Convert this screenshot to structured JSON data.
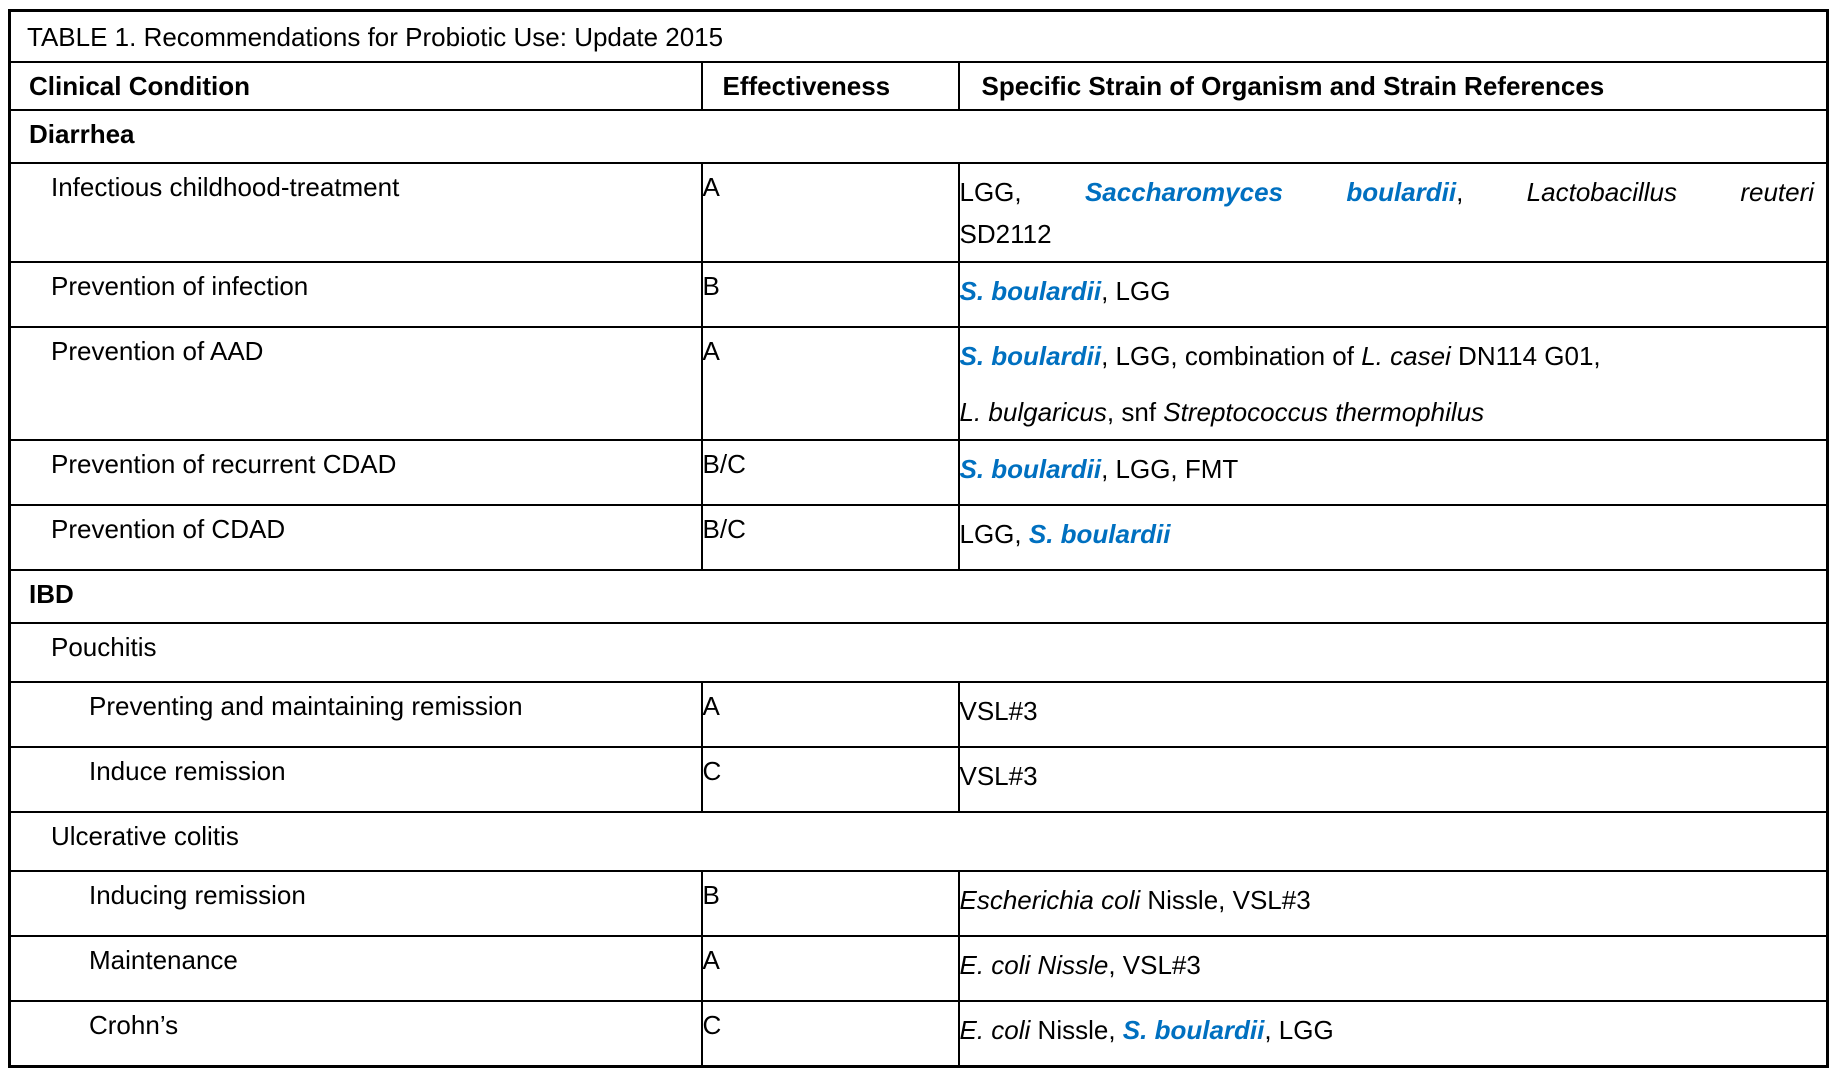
{
  "table": {
    "title": "TABLE 1. Recommendations for Probiotic Use: Update 2015",
    "columns": [
      "Clinical Condition",
      "Effectiveness",
      "Specific Strain of Organism and Strain References"
    ],
    "colors": {
      "strain_highlight": "#0070C0",
      "border": "#000000",
      "text": "#000000",
      "background": "#FFFFFF"
    },
    "rows": [
      {
        "type": "section",
        "condition": "Diarrhea"
      },
      {
        "type": "item",
        "condition": "Infectious childhood-treatment",
        "effectiveness": "A",
        "strain": {
          "lines": [
            {
              "justify": true,
              "segments": [
                {
                  "t": "LGG, ",
                  "s": "plain"
                },
                {
                  "t": "Saccharomyces boulardii",
                  "s": "highlight"
                },
                {
                  "t": ", ",
                  "s": "plain"
                },
                {
                  "t": "Lactobacillus reuteri",
                  "s": "italic"
                }
              ]
            },
            {
              "segments": [
                {
                  "t": "SD2112",
                  "s": "plain"
                }
              ]
            }
          ]
        }
      },
      {
        "type": "item",
        "condition": "Prevention of infection",
        "effectiveness": "B",
        "strain": {
          "lines": [
            {
              "segments": [
                {
                  "t": "S. boulardii",
                  "s": "highlight"
                },
                {
                  "t": ", LGG",
                  "s": "plain"
                }
              ]
            }
          ]
        }
      },
      {
        "type": "item",
        "condition": "Prevention of AAD",
        "effectiveness": "A",
        "strain": {
          "spaced": true,
          "lines": [
            {
              "segments": [
                {
                  "t": "S. boulardii",
                  "s": "highlight"
                },
                {
                  "t": ", LGG, combination of ",
                  "s": "plain"
                },
                {
                  "t": "L. casei",
                  "s": "italic"
                },
                {
                  "t": " DN114 G01,",
                  "s": "plain"
                }
              ]
            },
            {
              "segments": [
                {
                  "t": "L. bulgaricus",
                  "s": "italic"
                },
                {
                  "t": ", snf ",
                  "s": "plain"
                },
                {
                  "t": "Streptococcus thermophilus",
                  "s": "italic"
                }
              ]
            }
          ]
        }
      },
      {
        "type": "item",
        "condition": "Prevention of recurrent CDAD",
        "effectiveness": "B/C",
        "strain": {
          "lines": [
            {
              "segments": [
                {
                  "t": "S. boulardii",
                  "s": "highlight"
                },
                {
                  "t": ", LGG, FMT",
                  "s": "plain"
                }
              ]
            }
          ]
        }
      },
      {
        "type": "item",
        "condition": "Prevention of CDAD",
        "effectiveness": "B/C",
        "strain": {
          "lines": [
            {
              "segments": [
                {
                  "t": "LGG, ",
                  "s": "plain"
                },
                {
                  "t": "S. boulardii",
                  "s": "highlight"
                }
              ]
            }
          ]
        }
      },
      {
        "type": "section",
        "condition": "IBD"
      },
      {
        "type": "subsection",
        "condition": "Pouchitis"
      },
      {
        "type": "item",
        "level": 2,
        "condition": "Preventing and maintaining remission",
        "effectiveness": "A",
        "strain": {
          "lines": [
            {
              "segments": [
                {
                  "t": "VSL#3",
                  "s": "plain"
                }
              ]
            }
          ]
        }
      },
      {
        "type": "item",
        "level": 2,
        "condition": "Induce remission",
        "effectiveness": "C",
        "strain": {
          "lines": [
            {
              "segments": [
                {
                  "t": "VSL#3",
                  "s": "plain"
                }
              ]
            }
          ]
        }
      },
      {
        "type": "subsection",
        "condition": "Ulcerative colitis"
      },
      {
        "type": "item",
        "level": 2,
        "condition": "Inducing remission",
        "effectiveness": "B",
        "strain": {
          "lines": [
            {
              "segments": [
                {
                  "t": "Escherichia coli",
                  "s": "italic"
                },
                {
                  "t": " Nissle, VSL#3",
                  "s": "plain"
                }
              ]
            }
          ]
        }
      },
      {
        "type": "item",
        "level": 2,
        "condition": "Maintenance",
        "effectiveness": "A",
        "strain": {
          "lines": [
            {
              "segments": [
                {
                  "t": "E. coli Nissle",
                  "s": "italic"
                },
                {
                  "t": ", VSL#3",
                  "s": "plain"
                }
              ]
            }
          ]
        }
      },
      {
        "type": "item",
        "level": 2,
        "condition": "Crohn’s",
        "effectiveness": "C",
        "strain": {
          "lines": [
            {
              "segments": [
                {
                  "t": "E. coli",
                  "s": "italic"
                },
                {
                  "t": " Nissle, ",
                  "s": "plain"
                },
                {
                  "t": "S. boulardii",
                  "s": "highlight"
                },
                {
                  "t": ", LGG",
                  "s": "plain"
                }
              ]
            }
          ]
        }
      }
    ]
  }
}
